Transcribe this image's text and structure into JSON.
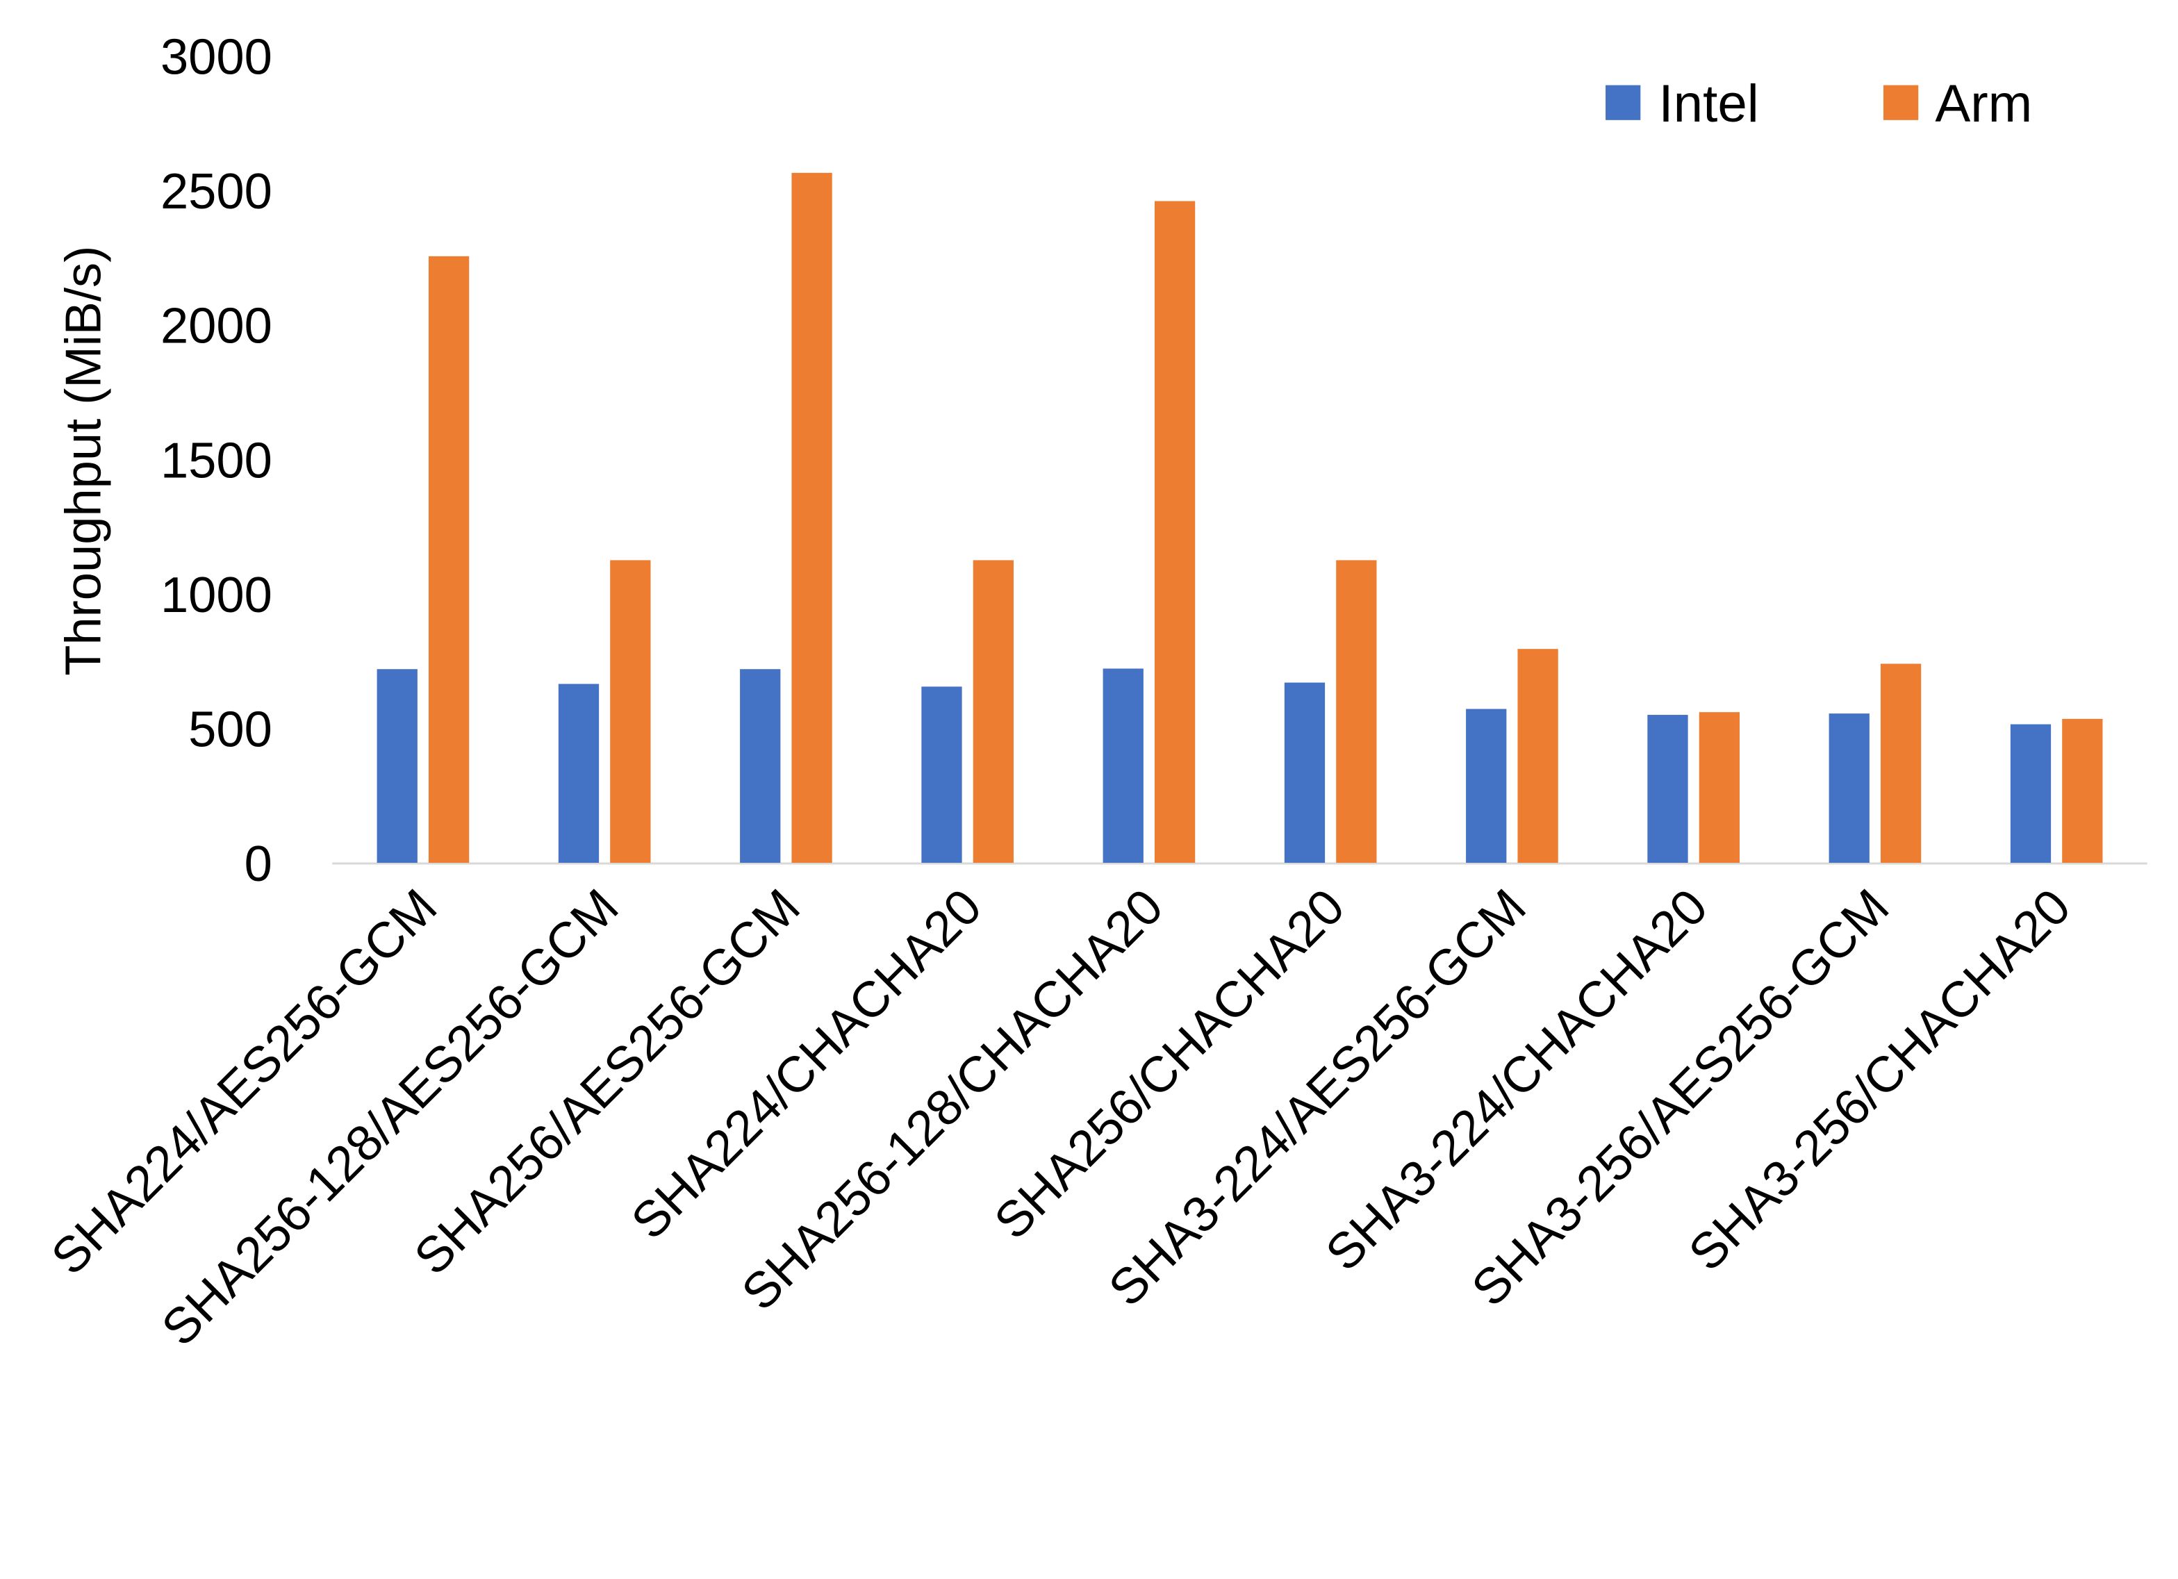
{
  "chart_data": {
    "type": "bar",
    "title": "",
    "xlabel": "",
    "ylabel": "Throughput (MiB/s)",
    "ylim": [
      0,
      3000
    ],
    "yticks": [
      0,
      500,
      1000,
      1500,
      2000,
      2500,
      3000
    ],
    "grid": false,
    "legend_placement": "top-right",
    "categories": [
      "SHA224/AES256-GCM",
      "SHA256-128/AES256-GCM",
      "SHA256/AES256-GCM",
      "SHA224/CHACHA20",
      "SHA256-128/CHACHA20",
      "SHA256/CHACHA20",
      "SHA3-224/AES256-GCM",
      "SHA3-224/CHACHA20",
      "SHA3-256/AES256-GCM",
      "SHA3-256/CHACHA20"
    ],
    "series": [
      {
        "name": "Intel",
        "color": "#4472C4",
        "values": [
          720,
          665,
          720,
          655,
          722,
          670,
          572,
          550,
          555,
          515
        ]
      },
      {
        "name": "Arm",
        "color": "#ED7D31",
        "values": [
          2255,
          1125,
          2565,
          1125,
          2460,
          1125,
          795,
          560,
          740,
          535
        ]
      }
    ]
  }
}
